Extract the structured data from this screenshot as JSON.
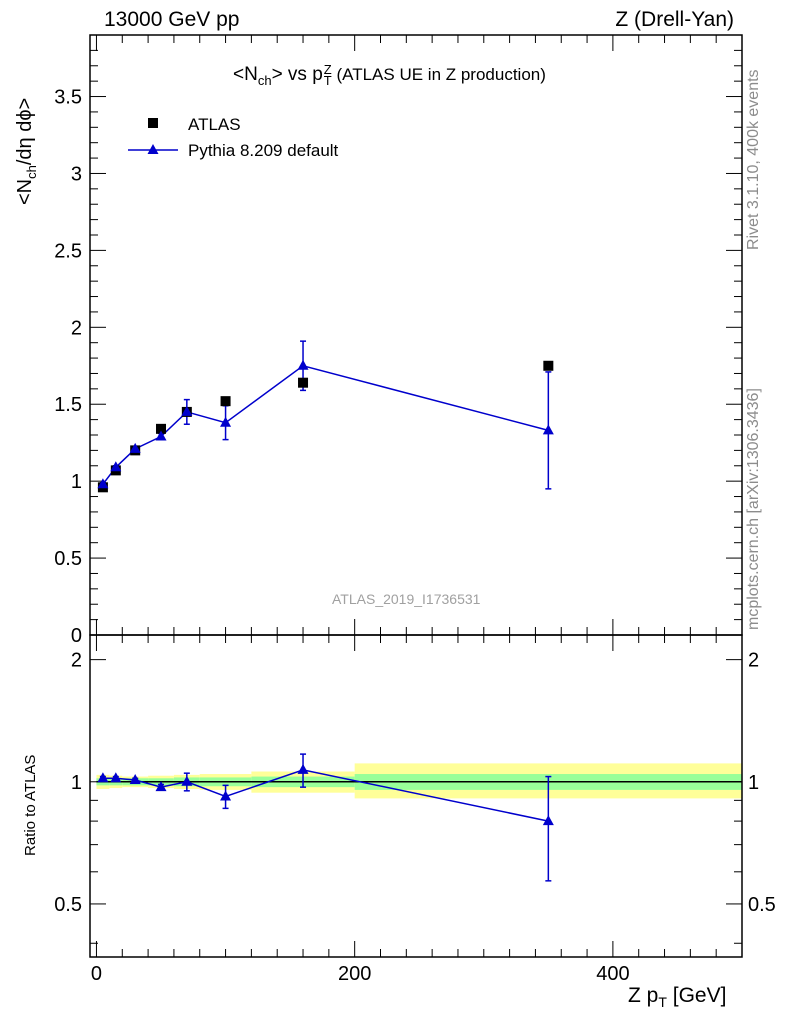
{
  "header": {
    "left": "13000 GeV pp",
    "right": "Z (Drell-Yan)"
  },
  "plot_title": {
    "main": "<N",
    "main_sub": "ch",
    "mid": "> vs p",
    "mid_sup": "Z",
    "mid_sub": "T",
    "extra": " (ATLAS UE in Z production)"
  },
  "watermark": "ATLAS_2019_I1736531",
  "side_labels": {
    "rivet": "Rivet 3.1.10,  400k events",
    "mcplots": "mcplots.cern.ch [arXiv:1306.3436]"
  },
  "axes": {
    "ylabel_main": "<N_ch/dη dϕ>",
    "ylabel_ratio": "Ratio to ATLAS",
    "xlabel": "Z p_T [GeV]"
  },
  "legend": {
    "placement": "top-left",
    "entries": [
      "ATLAS",
      "Pythia 8.209 default"
    ]
  },
  "colors": {
    "data": "#000000",
    "mc": "#0000cc",
    "band_inner": "#99ff99",
    "band_outer": "#ffff99"
  },
  "chart_data": [
    {
      "type": "scatter",
      "panel": "main",
      "xlim": [
        -5,
        500
      ],
      "ylim": [
        0,
        3.9
      ],
      "yticks": [
        0,
        0.5,
        1,
        1.5,
        2,
        2.5,
        3,
        3.5
      ],
      "ytick_labels": [
        "0",
        "0.5",
        "1",
        "1.5",
        "2",
        "2.5",
        "3",
        "3.5"
      ],
      "series": [
        {
          "name": "ATLAS",
          "marker": "square",
          "x": [
            5,
            15,
            30,
            50,
            70,
            100,
            160,
            350
          ],
          "y": [
            0.96,
            1.07,
            1.2,
            1.34,
            1.45,
            1.52,
            1.64,
            1.75
          ]
        },
        {
          "name": "Pythia 8.209 default",
          "marker": "triangle",
          "line": true,
          "x": [
            5,
            15,
            30,
            50,
            70,
            100,
            160,
            350
          ],
          "y": [
            0.98,
            1.09,
            1.21,
            1.29,
            1.45,
            1.38,
            1.75,
            1.33
          ],
          "yerr": [
            0.01,
            0.01,
            0.01,
            0.02,
            0.08,
            0.11,
            0.16,
            0.38
          ]
        }
      ]
    },
    {
      "type": "line",
      "panel": "ratio",
      "xlim": [
        -5,
        500
      ],
      "ylim": [
        0.37,
        2.3
      ],
      "yticks": [
        0.5,
        1,
        2
      ],
      "ytick_labels": [
        "0.5",
        "1",
        "2"
      ],
      "xticks": [
        0,
        200,
        400
      ],
      "xtick_labels": [
        "0",
        "200",
        "400"
      ],
      "bands": [
        {
          "x0": 0,
          "x1": 10,
          "inner": [
            0.98,
            1.02
          ],
          "outer": [
            0.96,
            1.04
          ]
        },
        {
          "x0": 10,
          "x1": 20,
          "inner": [
            0.98,
            1.02
          ],
          "outer": [
            0.965,
            1.035
          ]
        },
        {
          "x0": 20,
          "x1": 40,
          "inner": [
            0.98,
            1.02
          ],
          "outer": [
            0.97,
            1.03
          ]
        },
        {
          "x0": 40,
          "x1": 60,
          "inner": [
            0.98,
            1.02
          ],
          "outer": [
            0.965,
            1.035
          ]
        },
        {
          "x0": 60,
          "x1": 80,
          "inner": [
            0.975,
            1.025
          ],
          "outer": [
            0.96,
            1.04
          ]
        },
        {
          "x0": 80,
          "x1": 120,
          "inner": [
            0.975,
            1.025
          ],
          "outer": [
            0.955,
            1.045
          ]
        },
        {
          "x0": 120,
          "x1": 200,
          "inner": [
            0.97,
            1.03
          ],
          "outer": [
            0.94,
            1.06
          ]
        },
        {
          "x0": 200,
          "x1": 500,
          "inner": [
            0.955,
            1.045
          ],
          "outer": [
            0.91,
            1.11
          ]
        }
      ],
      "series": [
        {
          "name": "Pythia 8.209 default",
          "x": [
            5,
            15,
            30,
            50,
            70,
            100,
            160,
            350
          ],
          "y": [
            1.02,
            1.02,
            1.01,
            0.97,
            1.0,
            0.92,
            1.07,
            0.8
          ],
          "yerr": [
            0.01,
            0.01,
            0.01,
            0.015,
            0.05,
            0.06,
            0.1,
            0.23
          ]
        }
      ]
    }
  ]
}
